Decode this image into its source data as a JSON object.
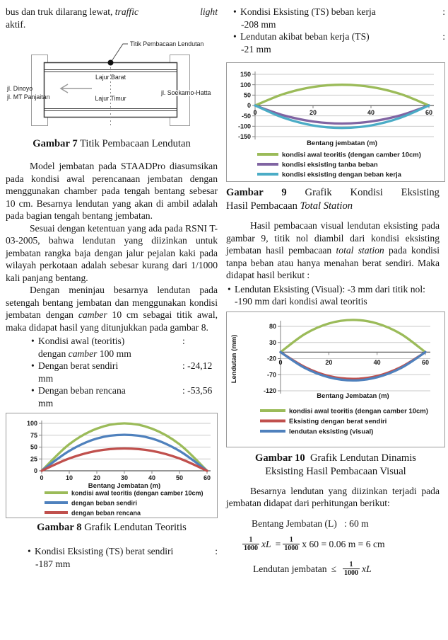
{
  "colors": {
    "green": "#9bbb59",
    "blue": "#4f81bd",
    "red": "#c0504d",
    "purple": "#8064a2",
    "teal": "#4bacc6",
    "grid": "#c9c9c9",
    "axis": "#808080",
    "zero_axis": "#595959",
    "box_border": "#9a9a9a",
    "text": "#161616"
  },
  "left": {
    "intro": {
      "line1_left": [
        {
          "t": "bus dan truk dilarang lewat, "
        },
        {
          "t": "traffic",
          "i": true
        }
      ],
      "line1_right": "light",
      "line2": "aktif."
    },
    "diagram": {
      "callout": "Titik Pembacaan Lendutan",
      "lane_top": "Lajur Barat",
      "lane_bottom": "Lajur Timur",
      "road_left_1": "jl. Dinoyo",
      "road_left_2": "jl. MT Panjaitan",
      "road_right": "jl. Soekarno-Hatta"
    },
    "caption7": {
      "bold": "Gambar 7",
      "rest": " Titik Pembacaan Lendutan"
    },
    "para1": [
      {
        "t": "Model jembatan pada STAADPro diasumsikan pada kondisi awal perencanaan jembatan dengan menggunakan chamber pada tengah bentang sebesar 10 cm. Besarnya lendutan yang akan di ambil adalah pada bagian tengah bentang jembatan."
      }
    ],
    "para2": [
      {
        "t": "Sesuai dengan ketentuan yang ada pada RSNI T-03-2005, bahwa lendutan yang diizinkan untuk jembatan rangka baja dengan jalur pejalan kaki pada wilayah perkotaan adalah sebesar kurang dari 1/1000 kali panjang bentang."
      }
    ],
    "para3": [
      {
        "t": "Dengan meninjau besarnya lendutan pada setengah bentang jembatan dan menggunakan kondisi jembatan dengan "
      },
      {
        "t": "camber",
        "i": true
      },
      {
        "t": " 10 cm sebagai titik awal, maka didapat hasil yang ditunjukkan pada gambar 8."
      }
    ],
    "bullets": [
      {
        "label": [
          {
            "t": "Kondisi awal (teoritis)"
          }
        ],
        "right": ":",
        "cont": [
          {
            "t": "dengan "
          },
          {
            "t": "camber",
            "i": true
          },
          {
            "t": " 100 mm"
          }
        ]
      },
      {
        "label": [
          {
            "t": "Dengan berat sendiri"
          }
        ],
        "right": ": -24,12",
        "cont": [
          {
            "t": "mm"
          }
        ]
      },
      {
        "label": [
          {
            "t": "Dengan beban rencana"
          }
        ],
        "right": ": -53,56",
        "cont": [
          {
            "t": "mm"
          }
        ]
      }
    ],
    "caption8": {
      "bold": "Gambar 8",
      "rest": " Grafik Lendutan Teoritis"
    },
    "bullet_ts": {
      "label": "Kondisi Eksisting (TS) berat sendiri",
      "right": ":",
      "cont": "-187 mm"
    }
  },
  "right": {
    "bullets": [
      {
        "label": "Kondisi Eksisting (TS) beban kerja",
        "right": ":",
        "cont": "-208 mm"
      },
      {
        "label": "Lendutan akibat beban kerja (TS)",
        "right": ":",
        "cont": "-21 mm"
      }
    ],
    "caption9": {
      "bold": "Gambar 9",
      "rest": " Grafik Kondisi Eksisting",
      "line2_pre": "Hasil Pembacaan ",
      "line2_italic": "Total Station"
    },
    "para1": [
      {
        "t": "Hasil pembacaan visual lendutan eksisting pada gambar 9, titik nol diambil dari kondisi eksisting jembatan hasil pembacaan "
      },
      {
        "t": "total station",
        "i": true
      },
      {
        "t": " pada kondisi tanpa beban atau hanya menahan berat sendiri. Maka didapat hasil berikut :"
      }
    ],
    "bullet_visual": "Lendutan Eksisting (Visual): -3 mm dari titik nol: -190 mm dari kondisi awal teoritis",
    "caption10": {
      "bold": "Gambar 10",
      "rest": "  Grafik Lendutan Dinamis",
      "line2": "Eksisting Hasil Pembacaan Visual"
    },
    "para2": [
      {
        "t": "Besarnya lendutan yang diizinkan terjadi pada jembatan didapat dari perhitungan berikut:"
      }
    ],
    "bentang": "Bentang Jembatan (L)   : 60 m",
    "formula": {
      "num1": "1",
      "den1": "1000",
      "xl1": "xL",
      "eq": "=",
      "num2": "1",
      "den2": "1000",
      "rest": "x 60 = 0.06 m = 6 cm"
    },
    "allow": {
      "pre": "Lendutan jembatan",
      "le": "≤",
      "num": "1",
      "den": "1000",
      "xl": "xL"
    }
  },
  "chart_data": [
    {
      "id": "gambar8",
      "type": "line",
      "title": "Grafik Lendutan Teoritis",
      "x": [
        0,
        10,
        20,
        30,
        40,
        50,
        60
      ],
      "series": [
        {
          "name": "kondisi awal teoritis (dengan camber 10cm)",
          "color": "#9bbb59",
          "values": [
            0,
            56,
            89,
            100,
            89,
            56,
            0
          ]
        },
        {
          "name": "dengan beban sendiri",
          "color": "#4f81bd",
          "values": [
            0,
            42,
            68,
            76,
            68,
            42,
            0
          ]
        },
        {
          "name": "dengan beban rencana",
          "color": "#c0504d",
          "values": [
            0,
            26,
            42,
            47,
            42,
            26,
            0
          ]
        }
      ],
      "xlabel": "Bentang Jembatan (m)",
      "ylabel": "",
      "xlim": [
        0,
        60
      ],
      "ylim": [
        0,
        107
      ],
      "xticks": [
        0,
        10,
        20,
        30,
        40,
        50,
        60
      ],
      "yticks": [
        0,
        25,
        50,
        75,
        100
      ],
      "grid": true,
      "legend_position": "bottom"
    },
    {
      "id": "gambar9",
      "type": "line",
      "title": "Grafik Kondisi Eksisting Hasil Pembacaan Total Station",
      "x": [
        0,
        10,
        20,
        30,
        40,
        50,
        60
      ],
      "series": [
        {
          "name": "kondisi awal teoritis (dengan camber 10cm)",
          "color": "#9bbb59",
          "values": [
            0,
            56,
            89,
            100,
            89,
            56,
            0
          ]
        },
        {
          "name": "kondisi eksisting tanba beban",
          "color": "#8064a2",
          "values": [
            0,
            -48,
            -77,
            -87,
            -77,
            -48,
            0
          ]
        },
        {
          "name": "kondisi eksisting dengan beban kerja",
          "color": "#4bacc6",
          "values": [
            0,
            -60,
            -96,
            -108,
            -96,
            -60,
            0
          ]
        }
      ],
      "xlabel": "Bentang jembatan (m)",
      "ylabel": "",
      "xlim": [
        0,
        60
      ],
      "ylim": [
        -150,
        150
      ],
      "xticks": [
        0,
        20,
        40,
        60
      ],
      "yticks": [
        150,
        100,
        50,
        0,
        -50,
        -100,
        -150
      ],
      "grid": true,
      "legend_position": "bottom"
    },
    {
      "id": "gambar10",
      "type": "line",
      "title": "Grafik Lendutan Dinamis Eksisting Hasil Pembacaan Visual",
      "x": [
        0,
        10,
        20,
        30,
        40,
        50,
        60
      ],
      "series": [
        {
          "name": "kondisi awal teoritis (dengan camber 10cm)",
          "color": "#9bbb59",
          "values": [
            0,
            56,
            89,
            100,
            89,
            56,
            0
          ]
        },
        {
          "name": "Eksisting dengan berat sendiri",
          "color": "#c0504d",
          "values": [
            0,
            -46,
            -74,
            -83,
            -74,
            -46,
            0
          ]
        },
        {
          "name": "lendutan eksisting (visual)",
          "color": "#4f81bd",
          "values": [
            0,
            -49,
            -78,
            -88,
            -78,
            -49,
            0
          ]
        }
      ],
      "xlabel": "Bentang Jembatan (m)",
      "ylabel": "Lendutan (mm)",
      "xlim": [
        0,
        60
      ],
      "ylim": [
        -130,
        105
      ],
      "xticks": [
        0,
        20,
        40,
        60
      ],
      "yticks": [
        80,
        30,
        -20,
        -70,
        -120
      ],
      "grid": true,
      "legend_position": "bottom"
    }
  ]
}
